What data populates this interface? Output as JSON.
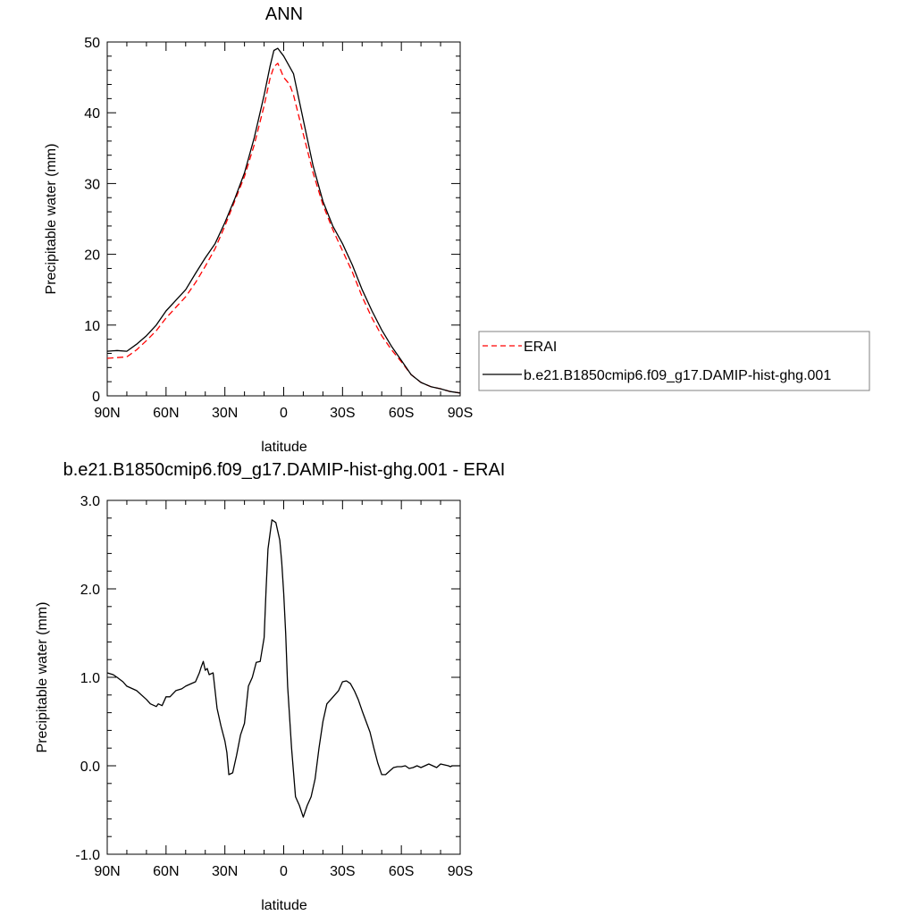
{
  "chart_data": [
    {
      "type": "line",
      "title": "ANN",
      "xlabel": "latitude",
      "ylabel": "Precipitable water (mm)",
      "xlim": [
        90,
        -90
      ],
      "ylim": [
        0,
        50
      ],
      "x_ticks": [
        90,
        60,
        30,
        0,
        -30,
        -60,
        -90
      ],
      "x_tick_labels": [
        "90N",
        "60N",
        "30N",
        "0",
        "30S",
        "60S",
        "90S"
      ],
      "y_ticks": [
        0,
        10,
        20,
        30,
        40,
        50
      ],
      "y_tick_labels": [
        "0",
        "10",
        "20",
        "30",
        "40",
        "50"
      ],
      "legend_placement": "right",
      "series": [
        {
          "name": "ERAI",
          "color": "#ff0000",
          "style": "dashed",
          "x": [
            90,
            85,
            80,
            75,
            70,
            65,
            60,
            55,
            50,
            45,
            40,
            35,
            30,
            25,
            20,
            15,
            10,
            7,
            5,
            3,
            0,
            -3,
            -5,
            -10,
            -15,
            -20,
            -25,
            -30,
            -35,
            -40,
            -45,
            -50,
            -55,
            -60,
            -65,
            -70,
            -75,
            -80,
            -85,
            -90
          ],
          "values": [
            5.3,
            5.4,
            5.5,
            6.5,
            7.8,
            9.2,
            11.0,
            12.5,
            14.0,
            16.0,
            18.3,
            20.8,
            24.0,
            27.5,
            31.0,
            35.5,
            41.0,
            44.8,
            46.5,
            47.0,
            45.0,
            44.0,
            42.5,
            37.0,
            31.5,
            27.0,
            23.5,
            20.5,
            17.5,
            14.0,
            11.0,
            8.5,
            6.5,
            4.8,
            3.0,
            1.9,
            1.3,
            1.0,
            0.6,
            0.4
          ]
        },
        {
          "name": "b.e21.B1850cmip6.f09_g17.DAMIP-hist-ghg.001",
          "color": "#000000",
          "style": "solid",
          "x": [
            90,
            85,
            80,
            75,
            70,
            65,
            60,
            55,
            50,
            45,
            40,
            35,
            30,
            25,
            20,
            15,
            10,
            7,
            5,
            3,
            0,
            -3,
            -5,
            -10,
            -15,
            -20,
            -25,
            -30,
            -35,
            -40,
            -45,
            -50,
            -55,
            -60,
            -65,
            -70,
            -75,
            -80,
            -85,
            -90
          ],
          "values": [
            6.3,
            6.4,
            6.3,
            7.3,
            8.5,
            10.0,
            12.0,
            13.5,
            15.0,
            17.3,
            19.5,
            21.5,
            24.5,
            27.8,
            31.5,
            36.5,
            42.5,
            46.5,
            48.8,
            49.1,
            48.0,
            46.5,
            45.5,
            39.0,
            32.5,
            27.5,
            24.0,
            21.5,
            18.5,
            15.0,
            12.0,
            9.3,
            7.0,
            5.0,
            3.0,
            1.9,
            1.3,
            1.0,
            0.6,
            0.4
          ]
        }
      ]
    },
    {
      "type": "line",
      "title": "b.e21.B1850cmip6.f09_g17.DAMIP-hist-ghg.001 - ERAI",
      "xlabel": "latitude",
      "ylabel": "Precipitable water (mm)",
      "xlim": [
        90,
        -90
      ],
      "ylim": [
        -1.0,
        3.0
      ],
      "x_ticks": [
        90,
        60,
        30,
        0,
        -30,
        -60,
        -90
      ],
      "x_tick_labels": [
        "90N",
        "60N",
        "30N",
        "0",
        "30S",
        "60S",
        "90S"
      ],
      "y_ticks": [
        -1.0,
        0.0,
        1.0,
        2.0,
        3.0
      ],
      "y_tick_labels": [
        "-1.0",
        "0.0",
        "1.0",
        "2.0",
        "3.0"
      ],
      "series": [
        {
          "color": "#000000",
          "style": "solid",
          "x": [
            90,
            87,
            85,
            82,
            80,
            75,
            70,
            68,
            65,
            64,
            62,
            60,
            58,
            55,
            52,
            50,
            48,
            45,
            43,
            42,
            41,
            40,
            39,
            38,
            36,
            34,
            32,
            30,
            29,
            28,
            26,
            24,
            22,
            20,
            18,
            16,
            14,
            12,
            10,
            9,
            8,
            6,
            4,
            2,
            1,
            0,
            -1,
            -2,
            -4,
            -6,
            -8,
            -10,
            -12,
            -14,
            -16,
            -18,
            -20,
            -22,
            -24,
            -26,
            -28,
            -30,
            -32,
            -34,
            -36,
            -38,
            -40,
            -42,
            -44,
            -46,
            -48,
            -50,
            -52,
            -54,
            -56,
            -58,
            -60,
            -62,
            -64,
            -66,
            -68,
            -70,
            -72,
            -74,
            -76,
            -78,
            -80,
            -82,
            -84,
            -85,
            -86,
            -88,
            -90
          ],
          "values": [
            1.05,
            1.03,
            1.0,
            0.95,
            0.9,
            0.85,
            0.75,
            0.7,
            0.67,
            0.7,
            0.68,
            0.78,
            0.78,
            0.85,
            0.87,
            0.9,
            0.92,
            0.95,
            1.05,
            1.12,
            1.18,
            1.08,
            1.1,
            1.03,
            1.05,
            0.65,
            0.45,
            0.28,
            0.15,
            -0.1,
            -0.08,
            0.12,
            0.35,
            0.48,
            0.9,
            1.0,
            1.17,
            1.18,
            1.45,
            2.0,
            2.45,
            2.78,
            2.75,
            2.55,
            2.3,
            1.95,
            1.5,
            0.9,
            0.2,
            -0.35,
            -0.45,
            -0.58,
            -0.45,
            -0.35,
            -0.15,
            0.2,
            0.5,
            0.7,
            0.75,
            0.8,
            0.85,
            0.95,
            0.96,
            0.93,
            0.85,
            0.75,
            0.62,
            0.5,
            0.38,
            0.2,
            0.03,
            -0.1,
            -0.1,
            -0.06,
            -0.02,
            -0.01,
            -0.01,
            0.0,
            -0.03,
            -0.02,
            0.0,
            -0.02,
            0.0,
            0.02,
            0.0,
            -0.02,
            0.02,
            0.01,
            0.0,
            -0.01,
            0.0,
            0.0,
            0.0
          ]
        }
      ]
    }
  ]
}
